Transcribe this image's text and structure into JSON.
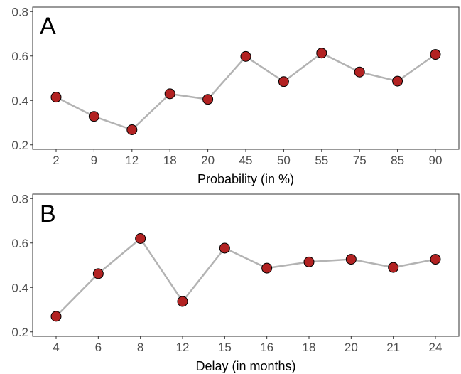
{
  "chart_data": [
    {
      "type": "line",
      "panel_label": "A",
      "xlabel": "Probability (in %)",
      "ylabel": "",
      "categories": [
        "2",
        "9",
        "12",
        "18",
        "20",
        "45",
        "50",
        "55",
        "75",
        "85",
        "90"
      ],
      "values": [
        0.415,
        0.328,
        0.268,
        0.43,
        0.405,
        0.598,
        0.485,
        0.613,
        0.528,
        0.487,
        0.607
      ],
      "ylim": [
        0.18,
        0.82
      ],
      "yticks": [
        "0.2",
        "0.4",
        "0.6",
        "0.8"
      ],
      "grid": false,
      "colors": {
        "line": "#b3b3b3",
        "marker_fill": "#b22222",
        "marker_edge": "#000000"
      }
    },
    {
      "type": "line",
      "panel_label": "B",
      "xlabel": "Delay (in months)",
      "ylabel": "",
      "categories": [
        "4",
        "6",
        "8",
        "12",
        "15",
        "16",
        "18",
        "20",
        "21",
        "24"
      ],
      "values": [
        0.27,
        0.462,
        0.62,
        0.337,
        0.577,
        0.487,
        0.515,
        0.527,
        0.49,
        0.527
      ],
      "ylim": [
        0.18,
        0.82
      ],
      "yticks": [
        "0.2",
        "0.4",
        "0.6",
        "0.8"
      ],
      "grid": false,
      "colors": {
        "line": "#b3b3b3",
        "marker_fill": "#b22222",
        "marker_edge": "#000000"
      }
    }
  ]
}
